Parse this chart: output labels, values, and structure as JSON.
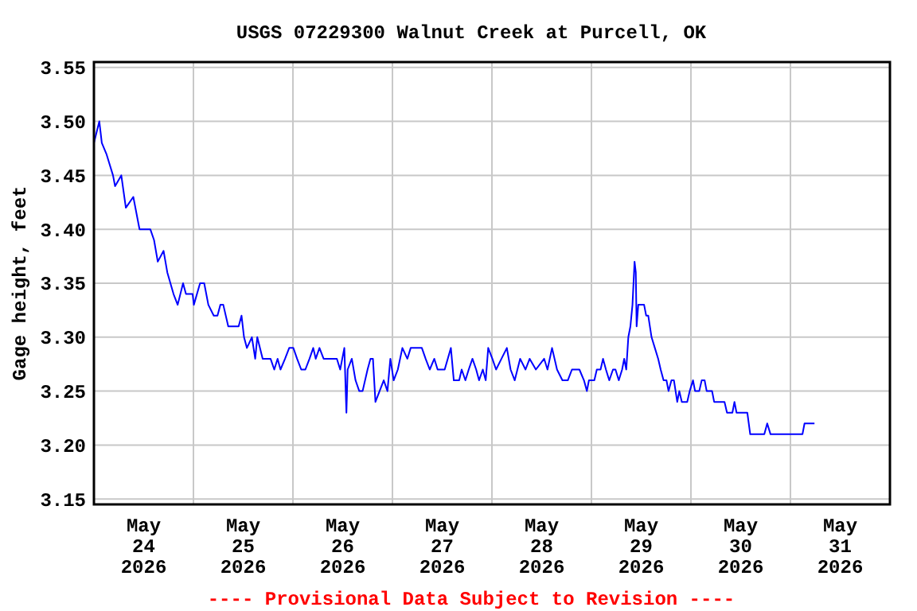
{
  "chart_data": {
    "type": "line",
    "title": "USGS 07229300 Walnut Creek at Purcell, OK",
    "ylabel": "Gage height, feet",
    "annotations": [
      "---- Provisional Data Subject to Revision ----"
    ],
    "xlim": [
      "2026-05-24T00:00",
      "2026-06-01T00:00"
    ],
    "ylim": [
      3.145,
      3.555
    ],
    "xticks": [
      {
        "value": "2026-05-24T12:00",
        "label": "May\n24\n2026"
      },
      {
        "value": "2026-05-25T00:00",
        "label": null
      },
      {
        "value": "2026-05-25T12:00",
        "label": "May\n25\n2026"
      },
      {
        "value": "2026-05-26T00:00",
        "label": null
      },
      {
        "value": "2026-05-26T12:00",
        "label": "May\n26\n2026"
      },
      {
        "value": "2026-05-27T00:00",
        "label": null
      },
      {
        "value": "2026-05-27T12:00",
        "label": "May\n27\n2026"
      },
      {
        "value": "2026-05-28T00:00",
        "label": null
      },
      {
        "value": "2026-05-28T12:00",
        "label": "May\n28\n2026"
      },
      {
        "value": "2026-05-29T00:00",
        "label": null
      },
      {
        "value": "2026-05-29T12:00",
        "label": "May\n29\n2026"
      },
      {
        "value": "2026-05-30T00:00",
        "label": null
      },
      {
        "value": "2026-05-30T12:00",
        "label": "May\n30\n2026"
      },
      {
        "value": "2026-05-31T00:00",
        "label": null
      },
      {
        "value": "2026-05-31T12:00",
        "label": "May\n31\n2026"
      }
    ],
    "yticks": [
      {
        "value": 3.15,
        "label": "3.15"
      },
      {
        "value": 3.2,
        "label": "3.20"
      },
      {
        "value": 3.25,
        "label": "3.25"
      },
      {
        "value": 3.3,
        "label": "3.30"
      },
      {
        "value": 3.35,
        "label": "3.35"
      },
      {
        "value": 3.4,
        "label": "3.40"
      },
      {
        "value": 3.45,
        "label": "3.45"
      },
      {
        "value": 3.5,
        "label": "3.50"
      },
      {
        "value": 3.55,
        "label": "3.55"
      }
    ],
    "grid": true,
    "marker": "none",
    "line_style": "solid",
    "series": [
      {
        "color": "#0000ff",
        "x": [
          "2026-05-24T00:00",
          "2026-05-24T01:18",
          "2026-05-24T01:54",
          "2026-05-24T03:00",
          "2026-05-24T04:36",
          "2026-05-24T05:06",
          "2026-05-24T06:36",
          "2026-05-24T07:42",
          "2026-05-24T09:30",
          "2026-05-24T11:00",
          "2026-05-24T13:36",
          "2026-05-24T14:30",
          "2026-05-24T15:24",
          "2026-05-24T16:48",
          "2026-05-24T17:42",
          "2026-05-24T19:12",
          "2026-05-24T20:12",
          "2026-05-24T21:30",
          "2026-05-24T22:12",
          "2026-05-24T23:48",
          "2026-05-25T00:06",
          "2026-05-25T01:36",
          "2026-05-25T02:36",
          "2026-05-25T03:36",
          "2026-05-25T04:54",
          "2026-05-25T05:48",
          "2026-05-25T06:30",
          "2026-05-25T07:12",
          "2026-05-25T08:24",
          "2026-05-25T10:54",
          "2026-05-25T11:36",
          "2026-05-25T12:12",
          "2026-05-25T12:54",
          "2026-05-25T14:06",
          "2026-05-25T14:54",
          "2026-05-25T15:24",
          "2026-05-25T16:42",
          "2026-05-25T18:36",
          "2026-05-25T19:30",
          "2026-05-25T20:18",
          "2026-05-25T21:00",
          "2026-05-25T22:06",
          "2026-05-25T23:06",
          "2026-05-26T00:06",
          "2026-05-26T01:00",
          "2026-05-26T02:00",
          "2026-05-26T03:00",
          "2026-05-26T04:00",
          "2026-05-26T04:54",
          "2026-05-26T05:30",
          "2026-05-26T06:24",
          "2026-05-26T07:24",
          "2026-05-26T10:36",
          "2026-05-26T11:24",
          "2026-05-26T12:24",
          "2026-05-26T12:54",
          "2026-05-26T13:12",
          "2026-05-26T14:12",
          "2026-05-26T15:06",
          "2026-05-26T16:00",
          "2026-05-26T16:48",
          "2026-05-26T18:00",
          "2026-05-26T18:42",
          "2026-05-26T19:18",
          "2026-05-26T19:54",
          "2026-05-26T20:54",
          "2026-05-26T21:54",
          "2026-05-26T22:48",
          "2026-05-26T23:30",
          "2026-05-27T00:18",
          "2026-05-27T01:18",
          "2026-05-27T02:24",
          "2026-05-27T03:36",
          "2026-05-27T04:24",
          "2026-05-27T07:06",
          "2026-05-27T08:00",
          "2026-05-27T09:00",
          "2026-05-27T10:06",
          "2026-05-27T10:54",
          "2026-05-27T12:36",
          "2026-05-27T14:06",
          "2026-05-27T14:48",
          "2026-05-27T16:06",
          "2026-05-27T16:42",
          "2026-05-27T17:36",
          "2026-05-27T18:24",
          "2026-05-27T19:18",
          "2026-05-27T20:12",
          "2026-05-27T20:54",
          "2026-05-27T21:48",
          "2026-05-27T22:30",
          "2026-05-27T23:06",
          "2026-05-28T00:06",
          "2026-05-28T01:00",
          "2026-05-28T02:18",
          "2026-05-28T03:36",
          "2026-05-28T04:30",
          "2026-05-28T05:30",
          "2026-05-28T06:48",
          "2026-05-28T08:06",
          "2026-05-28T09:06",
          "2026-05-28T10:36",
          "2026-05-28T12:36",
          "2026-05-28T13:24",
          "2026-05-28T14:30",
          "2026-05-28T15:42",
          "2026-05-28T17:00",
          "2026-05-28T18:18",
          "2026-05-28T19:18",
          "2026-05-28T21:06",
          "2026-05-28T22:12",
          "2026-05-28T22:54",
          "2026-05-28T23:24",
          "2026-05-29T00:42",
          "2026-05-29T01:18",
          "2026-05-29T02:12",
          "2026-05-29T02:48",
          "2026-05-29T03:30",
          "2026-05-29T04:18",
          "2026-05-29T05:12",
          "2026-05-29T05:48",
          "2026-05-29T06:36",
          "2026-05-29T07:24",
          "2026-05-29T07:54",
          "2026-05-29T08:24",
          "2026-05-29T08:54",
          "2026-05-29T09:24",
          "2026-05-29T09:54",
          "2026-05-29T10:24",
          "2026-05-29T10:42",
          "2026-05-29T10:54",
          "2026-05-29T11:18",
          "2026-05-29T12:00",
          "2026-05-29T12:42",
          "2026-05-29T13:12",
          "2026-05-29T13:42",
          "2026-05-29T14:30",
          "2026-05-29T15:18",
          "2026-05-29T16:06",
          "2026-05-29T16:42",
          "2026-05-29T17:24",
          "2026-05-29T18:06",
          "2026-05-29T18:36",
          "2026-05-29T19:18",
          "2026-05-29T19:54",
          "2026-05-29T20:42",
          "2026-05-29T21:12",
          "2026-05-29T21:48",
          "2026-05-29T23:06",
          "2026-05-29T23:42",
          "2026-05-30T00:30",
          "2026-05-30T01:00",
          "2026-05-30T02:00",
          "2026-05-30T02:36",
          "2026-05-30T03:18",
          "2026-05-30T03:48",
          "2026-05-30T05:06",
          "2026-05-30T05:36",
          "2026-05-30T08:06",
          "2026-05-30T08:42",
          "2026-05-30T10:00",
          "2026-05-30T10:30",
          "2026-05-30T11:00",
          "2026-05-30T13:36",
          "2026-05-30T14:18",
          "2026-05-30T17:42",
          "2026-05-30T18:24",
          "2026-05-30T19:12",
          "2026-05-31T02:54",
          "2026-05-31T03:24",
          "2026-05-31T05:48"
        ],
        "values": [
          3.48,
          3.5,
          3.48,
          3.47,
          3.45,
          3.44,
          3.45,
          3.42,
          3.43,
          3.4,
          3.4,
          3.39,
          3.37,
          3.38,
          3.36,
          3.34,
          3.33,
          3.35,
          3.34,
          3.34,
          3.33,
          3.35,
          3.35,
          3.33,
          3.32,
          3.32,
          3.33,
          3.33,
          3.31,
          3.31,
          3.32,
          3.3,
          3.29,
          3.3,
          3.28,
          3.3,
          3.28,
          3.28,
          3.27,
          3.28,
          3.27,
          3.28,
          3.29,
          3.29,
          3.28,
          3.27,
          3.27,
          3.28,
          3.29,
          3.28,
          3.29,
          3.28,
          3.28,
          3.27,
          3.29,
          3.23,
          3.27,
          3.28,
          3.26,
          3.25,
          3.25,
          3.27,
          3.28,
          3.28,
          3.24,
          3.25,
          3.26,
          3.25,
          3.28,
          3.26,
          3.27,
          3.29,
          3.28,
          3.29,
          3.29,
          3.28,
          3.27,
          3.28,
          3.27,
          3.27,
          3.29,
          3.26,
          3.26,
          3.27,
          3.26,
          3.27,
          3.28,
          3.27,
          3.26,
          3.27,
          3.26,
          3.29,
          3.28,
          3.27,
          3.28,
          3.29,
          3.27,
          3.26,
          3.28,
          3.27,
          3.28,
          3.27,
          3.28,
          3.27,
          3.29,
          3.27,
          3.26,
          3.26,
          3.27,
          3.27,
          3.26,
          3.25,
          3.26,
          3.26,
          3.27,
          3.27,
          3.28,
          3.27,
          3.26,
          3.27,
          3.27,
          3.26,
          3.27,
          3.28,
          3.27,
          3.3,
          3.31,
          3.33,
          3.37,
          3.36,
          3.31,
          3.33,
          3.33,
          3.33,
          3.32,
          3.32,
          3.3,
          3.29,
          3.28,
          3.27,
          3.26,
          3.26,
          3.25,
          3.26,
          3.26,
          3.24,
          3.25,
          3.24,
          3.24,
          3.25,
          3.26,
          3.25,
          3.25,
          3.26,
          3.26,
          3.25,
          3.25,
          3.24,
          3.24,
          3.23,
          3.23,
          3.24,
          3.23,
          3.23,
          3.21,
          3.21,
          3.22,
          3.21,
          3.21,
          3.22,
          3.22
        ]
      }
    ]
  }
}
